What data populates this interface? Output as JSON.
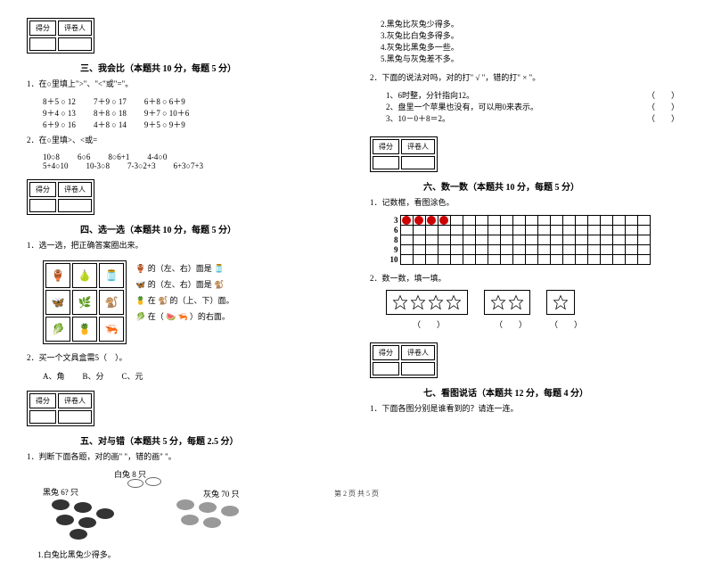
{
  "scorebox": {
    "score": "得分",
    "grader": "评卷人"
  },
  "sec3": {
    "title": "三、我会比（本题共 10 分，每题 5 分）",
    "q1": "1．在○里填上\">\"、\"<\"或\"=\"。",
    "q1r1": [
      "8＋5 ○ 12",
      "7＋9 ○ 17",
      "6＋8 ○ 6＋9"
    ],
    "q1r2": [
      "9＋4 ○ 13",
      "8＋8 ○ 18",
      "9＋7 ○ 10＋6"
    ],
    "q1r3": [
      "6＋9 ○ 16",
      "4＋8 ○ 14",
      "9＋5 ○ 9＋9"
    ],
    "q2": "2．在○里填>、<或=",
    "q2r1": [
      "10○8",
      "6○6",
      "8○6+1",
      "4-4○0"
    ],
    "q2r2": [
      "5+4○10",
      "10-3○8",
      "7-3○2+3",
      "6+3○7+3"
    ]
  },
  "sec4": {
    "title": "四、选一选（本题共 10 分，每题 5 分）",
    "q1": "1．选一选，把正确答案圈出来。",
    "p1": "的（左、右）面是",
    "p2": "的（左、右）面是",
    "p3": "在",
    "p3b": "的（上、下）面。",
    "p4": "在（",
    "p4b": "）的右面。",
    "q2": "2．买一个文具盒需5（　）。",
    "q2a": "A、角",
    "q2b": "B、分",
    "q2c": "C、元"
  },
  "sec5": {
    "title": "五、对与错（本题共 5 分，每题 2.5 分）",
    "q1": "1．判断下面各题，对的画\" \"，错的画\" \"。",
    "lbl_white": "白兔 8 只",
    "lbl_black": "黑兔 6? 只",
    "lbl_gray": "灰兔 70 只",
    "s1": "1.白兔比黑兔少得多。"
  },
  "rightTop": {
    "s2": "2.黑兔比灰兔少得多。",
    "s3": "3.灰兔比白兔多得多。",
    "s4": "4.灰兔比黑兔多一些。",
    "s5": "5.黑兔与灰兔差不多。"
  },
  "tf": {
    "q": "2．下面的说法对吗，对的打\" √ \"，错的打\" × \"。",
    "t1": "1、6时整，分针指向12。",
    "t2": "2、盘里一个苹果也没有，可以用0来表示。",
    "t3": "3、10－0＋8＝2。",
    "p": "（　　）"
  },
  "sec6": {
    "title": "六、数一数（本题共 10 分，每题 5 分）",
    "q1": "1．记数框，看图涂色。",
    "labels": [
      "3",
      "6",
      "8",
      "9",
      "10"
    ],
    "reds": 4,
    "q2": "2．数一数，填一填。"
  },
  "sec7": {
    "title": "七、看图说话（本题共 12 分，每题 4 分）",
    "q1": "1．下面各图分别是谁看到的？请连一连。"
  },
  "footer": "第 2 页 共 5 页",
  "paren": "（　　）"
}
